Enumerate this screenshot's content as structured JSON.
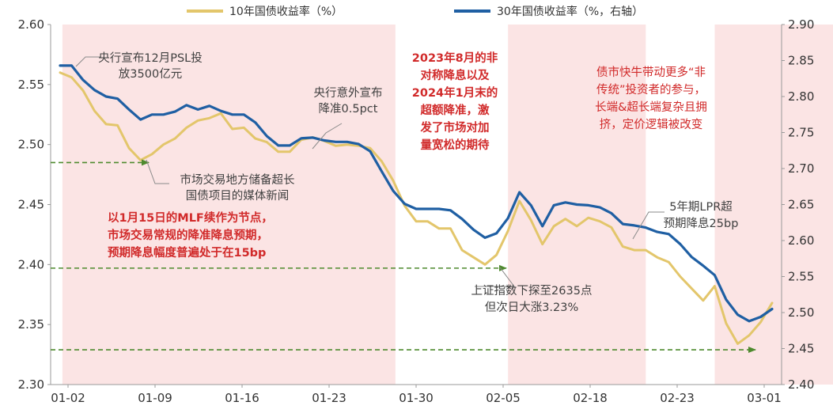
{
  "chart_data": {
    "type": "line",
    "x_ticks": [
      "01-02",
      "01-09",
      "01-16",
      "01-23",
      "01-30",
      "02-05",
      "02-18",
      "02-23",
      "03-01"
    ],
    "left_axis": {
      "min": 2.3,
      "max": 2.6,
      "step": 0.05,
      "ticks": [
        "2.30",
        "2.35",
        "2.40",
        "2.45",
        "2.50",
        "2.55",
        "2.60"
      ]
    },
    "right_axis": {
      "min": 2.4,
      "max": 2.9,
      "step": 0.05,
      "ticks": [
        "2.40",
        "2.45",
        "2.50",
        "2.55",
        "2.60",
        "2.65",
        "2.70",
        "2.75",
        "2.80",
        "2.85",
        "2.90"
      ]
    },
    "series": [
      {
        "name": "10年国债收益率（%）",
        "axis": "left",
        "color": "#E3C66B",
        "values": [
          2.56,
          2.556,
          2.545,
          2.528,
          2.517,
          2.516,
          2.497,
          2.487,
          2.492,
          2.5,
          2.505,
          2.514,
          2.52,
          2.522,
          2.526,
          2.513,
          2.514,
          2.505,
          2.502,
          2.494,
          2.494,
          2.504,
          2.506,
          2.503,
          2.499,
          2.5,
          2.499,
          2.497,
          2.486,
          2.47,
          2.449,
          2.436,
          2.436,
          2.43,
          2.43,
          2.412,
          2.406,
          2.4,
          2.408,
          2.428,
          2.453,
          2.437,
          2.417,
          2.432,
          2.438,
          2.432,
          2.439,
          2.436,
          2.431,
          2.415,
          2.412,
          2.412,
          2.406,
          2.402,
          2.39,
          2.38,
          2.37,
          2.382,
          2.351,
          2.334,
          2.341,
          2.352,
          2.368
        ]
      },
      {
        "name": "30年国债收益率（%，右轴）",
        "axis": "right",
        "color": "#1F5FA3",
        "values": [
          2.843,
          2.843,
          2.823,
          2.809,
          2.8,
          2.797,
          2.782,
          2.768,
          2.775,
          2.775,
          2.779,
          2.788,
          2.782,
          2.787,
          2.78,
          2.775,
          2.775,
          2.764,
          2.745,
          2.732,
          2.732,
          2.742,
          2.743,
          2.739,
          2.737,
          2.737,
          2.734,
          2.724,
          2.696,
          2.669,
          2.651,
          2.644,
          2.644,
          2.644,
          2.642,
          2.63,
          2.615,
          2.604,
          2.61,
          2.631,
          2.667,
          2.649,
          2.62,
          2.649,
          2.653,
          2.65,
          2.649,
          2.646,
          2.638,
          2.623,
          2.621,
          2.618,
          2.612,
          2.609,
          2.595,
          2.577,
          2.565,
          2.552,
          2.518,
          2.497,
          2.488,
          2.494,
          2.505
        ]
      }
    ],
    "shaded_ranges": [
      [
        0.2,
        29.2
      ],
      [
        39.0,
        51.0
      ],
      [
        57.0,
        76.0
      ]
    ],
    "annotations": [
      {
        "id": "psl",
        "lines": [
          "央行宣布12月PSL投",
          "放3500亿元"
        ],
        "color": "#404040"
      },
      {
        "id": "rrr",
        "lines": [
          "央行意外宣布",
          "降准0.5pct"
        ],
        "color": "#404040"
      },
      {
        "id": "local-bond",
        "lines": [
          "市场交易地方储备超长",
          "国债项目的媒体新闻"
        ],
        "color": "#404040"
      },
      {
        "id": "mlf",
        "lines": [
          "以1月15日的MLF续作为节点，",
          "市场交易常规的降准降息预期，",
          "预期降息幅度普遍处于在15bp"
        ],
        "color": "#D12A2A"
      },
      {
        "id": "rrr-2023",
        "lines": [
          "2023年8月的非",
          "对称降息以及",
          "2024年1月末的",
          "超额降准，激",
          "发了市场对加",
          "量宽松的期待"
        ],
        "color": "#D12A2A"
      },
      {
        "id": "non-traditional",
        "lines": [
          "债市快牛带动更多“非",
          "传统”投资者的参与，",
          "长端&超长端复杂且拥",
          "挤，定价逻辑被改变"
        ],
        "color": "#D12A2A"
      },
      {
        "id": "index",
        "lines": [
          "上证指数下探至2635点",
          "但次日大涨3.23%"
        ],
        "color": "#404040"
      },
      {
        "id": "lpr",
        "lines": [
          "5年期LPR超",
          "预期降息25bp"
        ],
        "color": "#404040"
      }
    ],
    "grid": false,
    "legend_position": "top-center"
  }
}
